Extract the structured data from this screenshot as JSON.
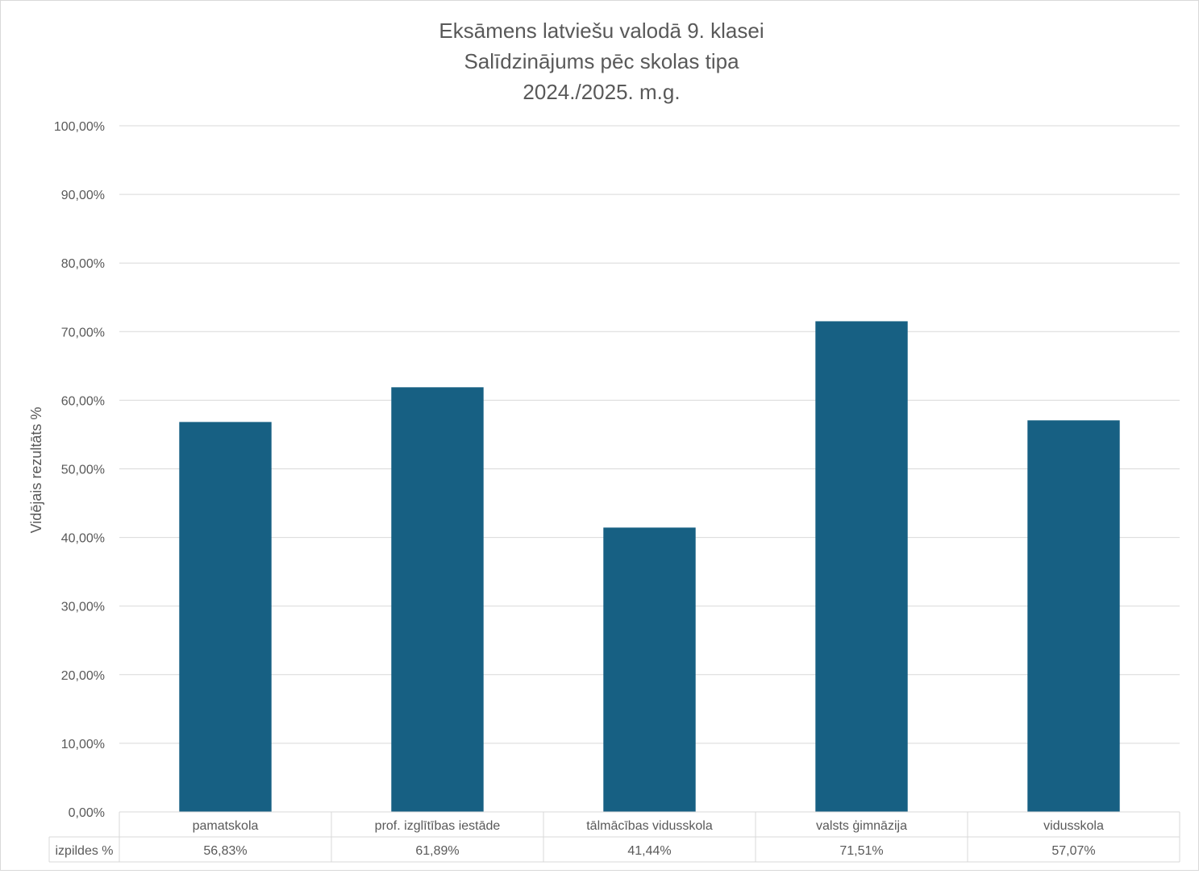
{
  "chart_data": {
    "type": "bar",
    "title_lines": [
      "Eksāmens latviešu valodā 9. klasei",
      "Salīdzinājums pēc skolas tipa",
      "2024./2025. m.g."
    ],
    "ylabel": "Vidējais rezultāts %",
    "xlabel": "",
    "ylim": [
      0,
      100
    ],
    "ytick_step": 10,
    "yticks": [
      "0,00%",
      "10,00%",
      "20,00%",
      "30,00%",
      "40,00%",
      "50,00%",
      "60,00%",
      "70,00%",
      "80,00%",
      "90,00%",
      "100,00%"
    ],
    "categories": [
      "pamatskola",
      "prof. izglītības iestāde",
      "tālmācības vidusskola",
      "valsts ģimnāzija",
      "vidusskola"
    ],
    "series": [
      {
        "name": "izpildes %",
        "values": [
          56.83,
          61.89,
          41.44,
          71.51,
          57.07
        ],
        "labels": [
          "56,83%",
          "61,89%",
          "41,44%",
          "71,51%",
          "57,07%"
        ]
      }
    ],
    "grid": true,
    "data_table": true,
    "colors": {
      "bar": "#176083",
      "grid": "#d9d9d9",
      "text": "#595959"
    }
  }
}
